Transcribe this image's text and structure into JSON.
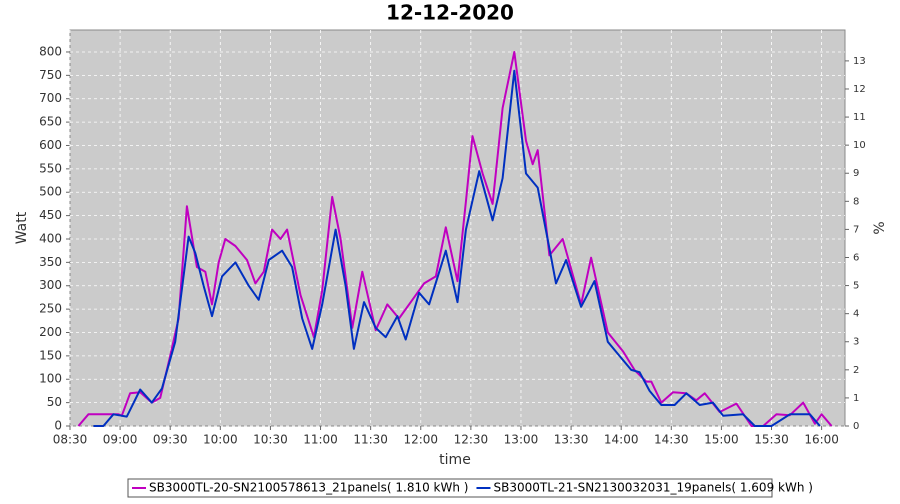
{
  "chart_data": {
    "type": "line",
    "title": "12-12-2020",
    "x_label": "time",
    "y_label": "Watt",
    "y2_label": "%",
    "xlim": [
      "08:30",
      "16:14"
    ],
    "xticks": [
      "08:30",
      "09:00",
      "09:30",
      "10:00",
      "10:30",
      "11:00",
      "11:30",
      "12:00",
      "12:30",
      "13:00",
      "13:30",
      "14:00",
      "14:30",
      "15:00",
      "15:30",
      "16:00"
    ],
    "ylim": [
      0,
      847
    ],
    "yticks": [
      0,
      50,
      100,
      150,
      200,
      250,
      300,
      350,
      400,
      450,
      500,
      550,
      600,
      650,
      700,
      750,
      800
    ],
    "y2lim": [
      0,
      14.1
    ],
    "y2ticks": [
      0,
      1,
      2,
      3,
      4,
      5,
      6,
      7,
      8,
      9,
      10,
      11,
      12,
      13
    ],
    "grid": true,
    "legend": "bottom",
    "series": [
      {
        "name": "SB3000TL-20-SN2100578613_21panels( 1.810 kWh )",
        "color": "#c000c0",
        "x": [
          "08:35",
          "08:41",
          "08:48",
          "08:59",
          "09:01",
          "09:06",
          "09:12",
          "09:19",
          "09:24",
          "09:30",
          "09:35",
          "09:40",
          "09:46",
          "09:51",
          "09:55",
          "09:59",
          "10:03",
          "10:09",
          "10:16",
          "10:21",
          "10:26",
          "10:31",
          "10:36",
          "10:40",
          "10:48",
          "10:56",
          "11:01",
          "11:07",
          "11:12",
          "11:19",
          "11:25",
          "11:33",
          "11:40",
          "11:47",
          "11:55",
          "12:02",
          "12:09",
          "12:15",
          "12:22",
          "12:27",
          "12:31",
          "12:37",
          "12:43",
          "12:49",
          "12:56",
          "13:03",
          "13:07",
          "13:10",
          "13:17",
          "13:25",
          "13:36",
          "13:42",
          "13:52",
          "14:01",
          "14:08",
          "14:15",
          "14:18",
          "14:24",
          "14:31",
          "14:39",
          "14:45",
          "14:50",
          "14:59",
          "15:09",
          "15:18",
          "15:25",
          "15:33",
          "15:41",
          "15:49",
          "15:56",
          "16:00",
          "16:06"
        ],
        "values": [
          0,
          25,
          25,
          25,
          22,
          70,
          72,
          50,
          60,
          150,
          230,
          470,
          340,
          330,
          260,
          350,
          400,
          385,
          355,
          305,
          330,
          420,
          400,
          420,
          280,
          190,
          290,
          490,
          400,
          210,
          330,
          205,
          260,
          230,
          270,
          305,
          320,
          425,
          310,
          480,
          620,
          540,
          475,
          680,
          800,
          610,
          560,
          590,
          365,
          400,
          260,
          360,
          200,
          160,
          120,
          95,
          95,
          50,
          72,
          70,
          55,
          70,
          30,
          48,
          0,
          0,
          25,
          23,
          50,
          5,
          25,
          0
        ]
      },
      {
        "name": "SB3000TL-21-SN2130032031_19panels( 1.609 kWh )",
        "color": "#0030c0",
        "x": [
          "08:44",
          "08:50",
          "08:56",
          "09:04",
          "09:12",
          "09:19",
          "09:25",
          "09:33",
          "09:41",
          "09:45",
          "09:50",
          "09:55",
          "10:01",
          "10:09",
          "10:17",
          "10:23",
          "10:29",
          "10:37",
          "10:43",
          "10:49",
          "10:55",
          "11:01",
          "11:09",
          "11:15",
          "11:20",
          "11:26",
          "11:33",
          "11:39",
          "11:46",
          "11:51",
          "11:59",
          "12:05",
          "12:15",
          "12:22",
          "12:27",
          "12:35",
          "12:43",
          "12:49",
          "12:56",
          "13:03",
          "13:10",
          "13:17",
          "13:21",
          "13:27",
          "13:36",
          "13:44",
          "13:52",
          "13:59",
          "14:06",
          "14:11",
          "14:17",
          "14:24",
          "14:32",
          "14:39",
          "14:47",
          "14:55",
          "15:01",
          "15:13",
          "15:20",
          "15:30",
          "15:41",
          "15:53",
          "15:59"
        ],
        "values": [
          0,
          0,
          25,
          20,
          78,
          50,
          80,
          180,
          405,
          370,
          300,
          235,
          320,
          350,
          300,
          270,
          355,
          375,
          340,
          230,
          165,
          260,
          420,
          300,
          165,
          265,
          210,
          190,
          235,
          185,
          285,
          260,
          375,
          265,
          420,
          545,
          440,
          530,
          760,
          540,
          510,
          380,
          305,
          355,
          255,
          310,
          180,
          150,
          120,
          115,
          75,
          45,
          45,
          70,
          45,
          50,
          22,
          25,
          0,
          0,
          25,
          25,
          0
        ]
      }
    ]
  }
}
